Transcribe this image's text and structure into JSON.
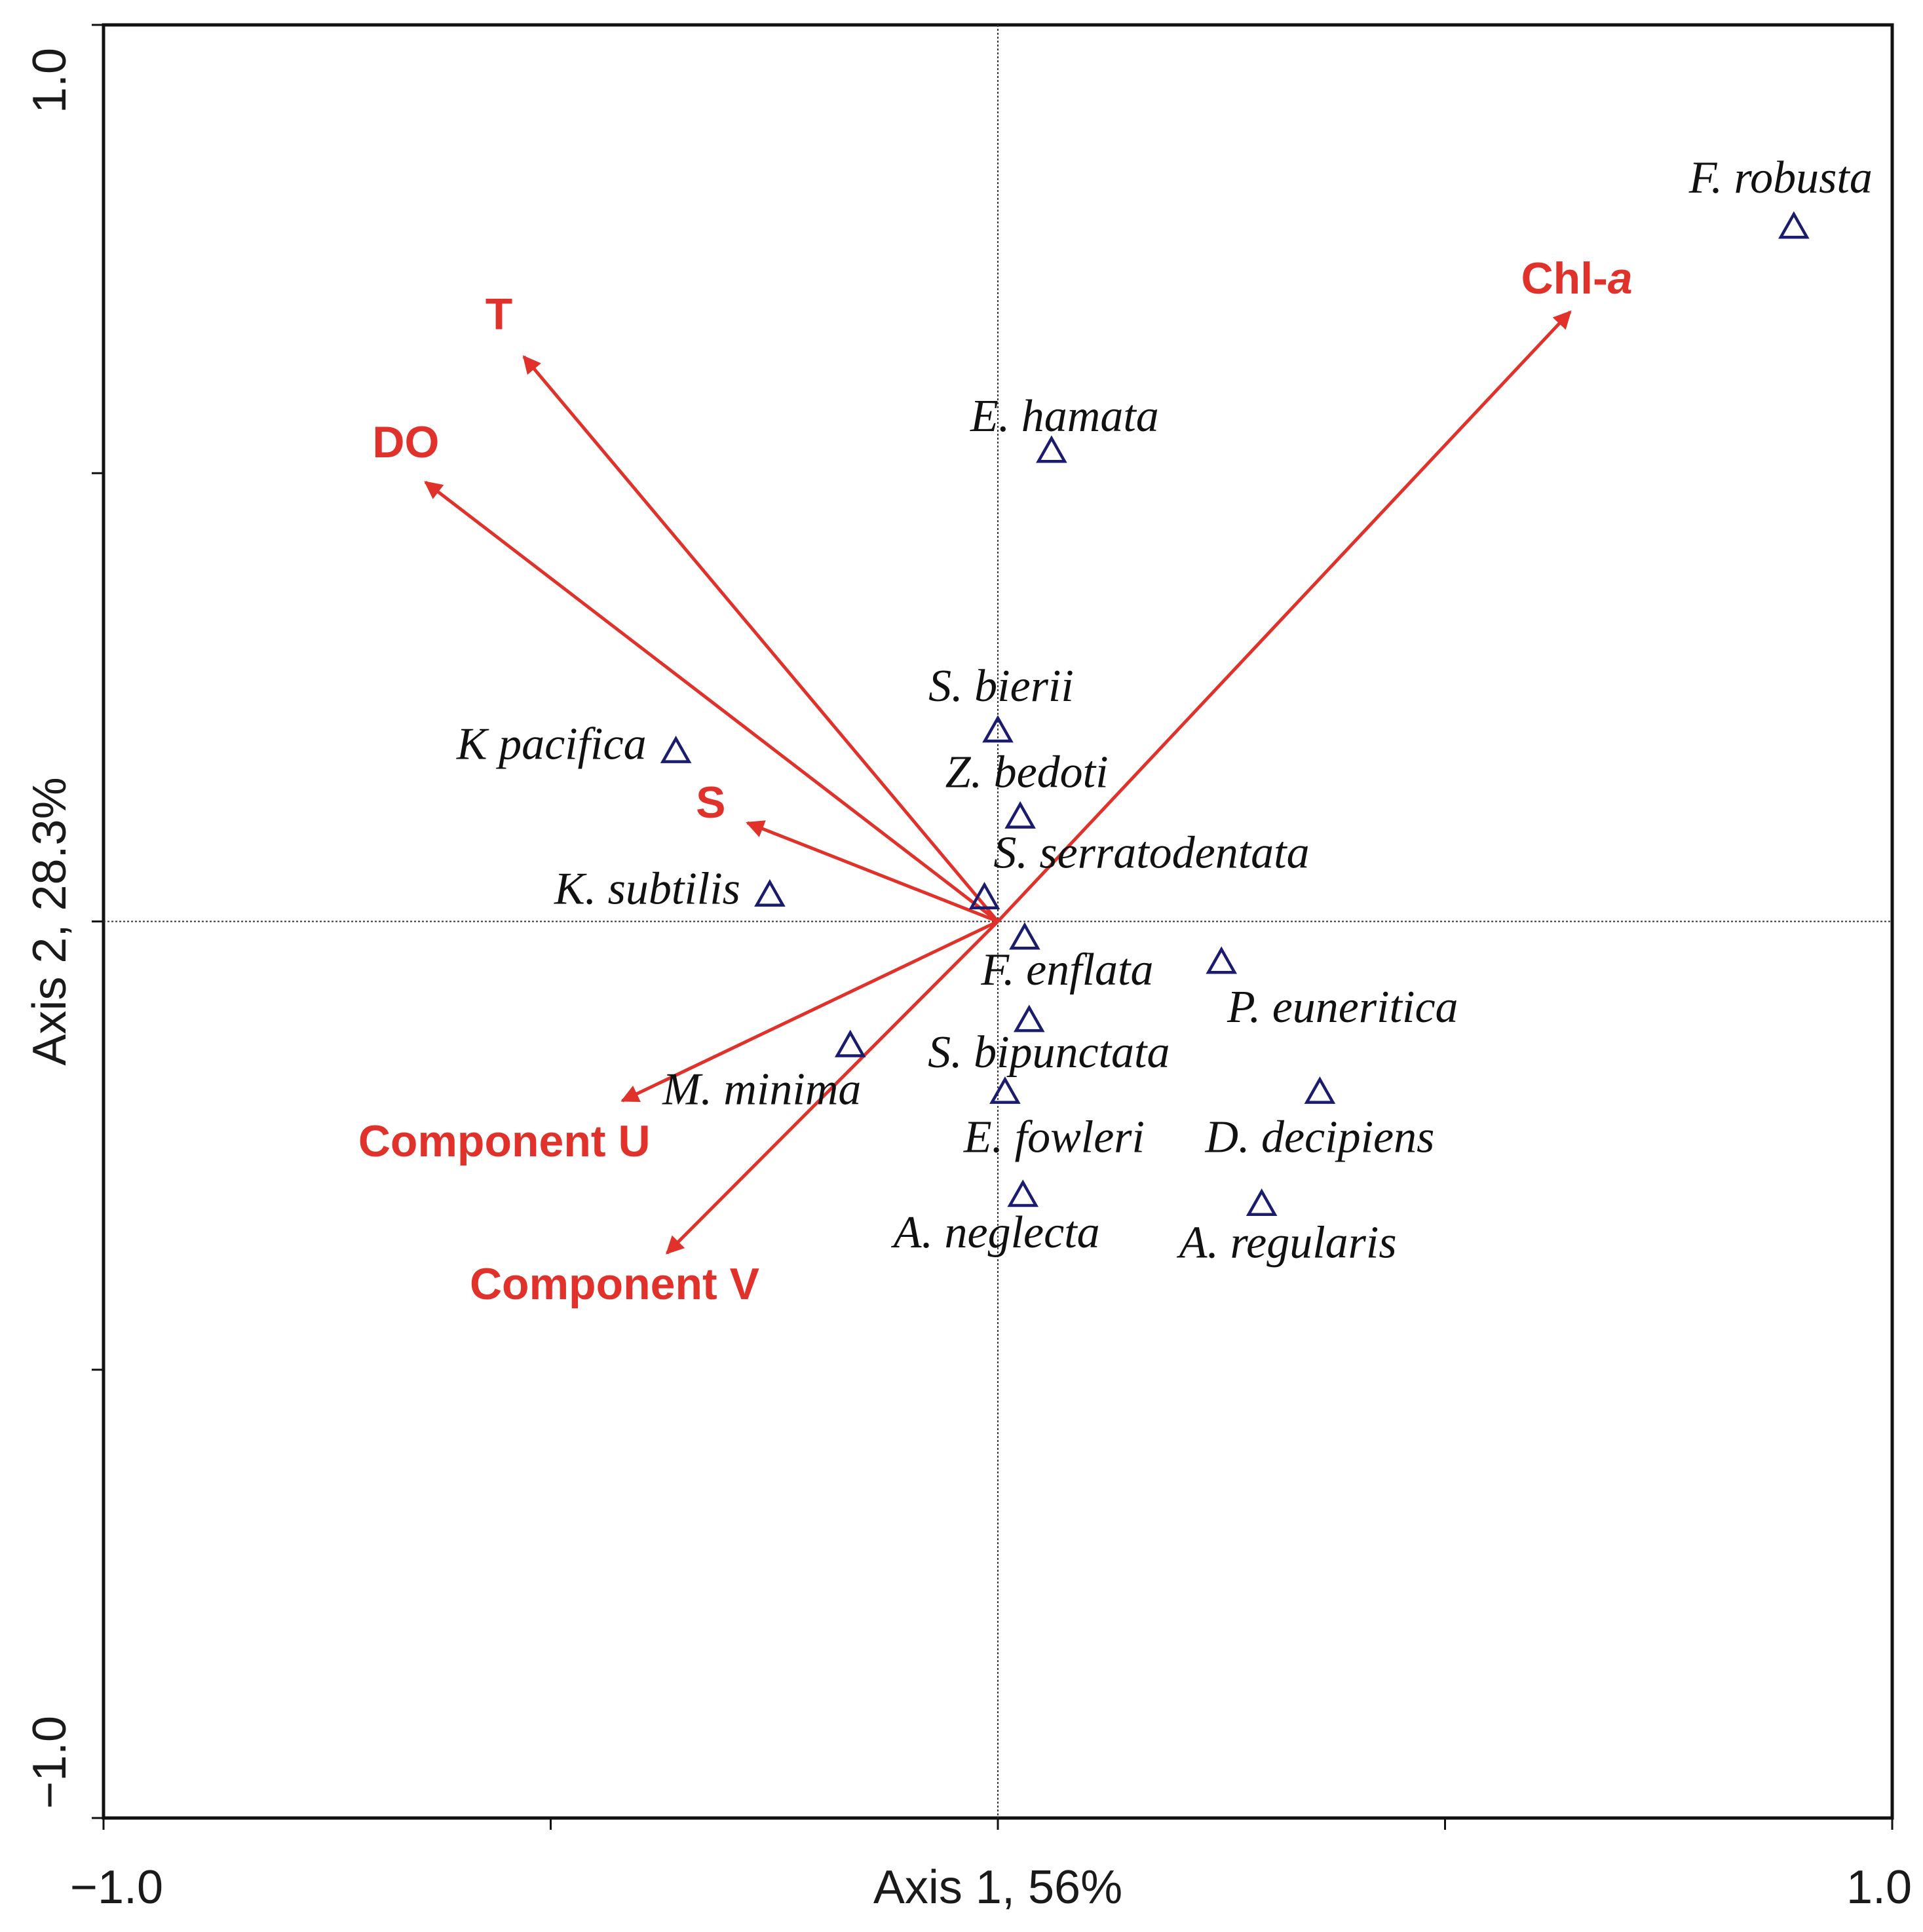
{
  "chart_data": {
    "type": "scatter",
    "subtype": "ordination-biplot",
    "title": "",
    "xlabel": "Axis 1, 56%",
    "ylabel": "Axis 2, 28.3%",
    "xlim": [
      -1.0,
      1.0
    ],
    "ylim": [
      -1.0,
      1.0
    ],
    "x_tick_labels": [
      "−1.0",
      "1.0"
    ],
    "y_tick_labels": [
      "−1.0",
      "1.0"
    ],
    "minor_ticks": [
      -0.5,
      0.0,
      0.5
    ],
    "zero_lines": true,
    "colors": {
      "vector": "#e0312a",
      "marker": "#1b1c6e",
      "frame": "#111111",
      "zero_line": "#333333"
    },
    "environmental_vectors": [
      {
        "name": "T",
        "x": -0.53,
        "y": 0.63,
        "label_pre": "T",
        "label_italic": ""
      },
      {
        "name": "DO",
        "x": -0.64,
        "y": 0.49,
        "label_pre": "DO",
        "label_italic": ""
      },
      {
        "name": "S",
        "x": -0.28,
        "y": 0.11,
        "label_pre": "S",
        "label_italic": ""
      },
      {
        "name": "Chl-a",
        "x": 0.64,
        "y": 0.68,
        "label_pre": "Chl-",
        "label_italic": "a"
      },
      {
        "name": "Component U",
        "x": -0.42,
        "y": -0.2,
        "label_pre": "Component U",
        "label_italic": ""
      },
      {
        "name": "Component V",
        "x": -0.37,
        "y": -0.37,
        "label_pre": "Component V",
        "label_italic": ""
      }
    ],
    "species": [
      {
        "name": "F. robusta",
        "x": 0.89,
        "y": 0.775
      },
      {
        "name": "E. hamata",
        "x": 0.06,
        "y": 0.525
      },
      {
        "name": "S. bierii",
        "x": 0.0,
        "y": 0.213
      },
      {
        "name": "K pacifica",
        "x": -0.36,
        "y": 0.19
      },
      {
        "name": "Z. bedoti",
        "x": 0.025,
        "y": 0.117
      },
      {
        "name": "S. serratodentata",
        "x": -0.015,
        "y": 0.027
      },
      {
        "name": "K. subtilis",
        "x": -0.255,
        "y": 0.03
      },
      {
        "name": "F. enflata",
        "x": 0.03,
        "y": -0.018
      },
      {
        "name": "P. euneritica",
        "x": 0.25,
        "y": -0.045
      },
      {
        "name": "S. bipunctata",
        "x": 0.035,
        "y": -0.11
      },
      {
        "name": "M. minima",
        "x": -0.165,
        "y": -0.138
      },
      {
        "name": "E. fowleri",
        "x": 0.008,
        "y": -0.19
      },
      {
        "name": "D. decipiens",
        "x": 0.36,
        "y": -0.19
      },
      {
        "name": "A. neglecta",
        "x": 0.028,
        "y": -0.305
      },
      {
        "name": "A. regularis",
        "x": 0.295,
        "y": -0.315
      }
    ]
  }
}
